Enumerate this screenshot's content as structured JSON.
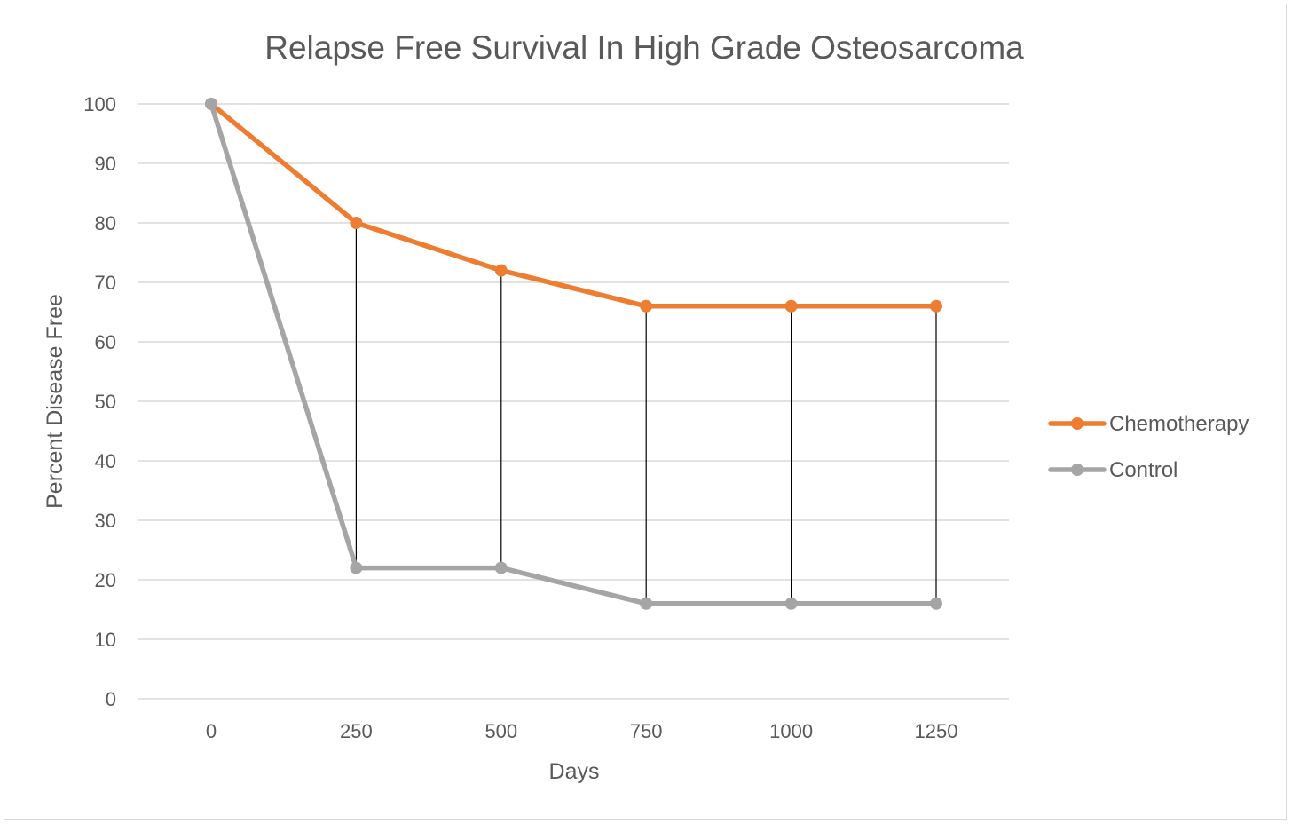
{
  "chart_data": {
    "type": "line",
    "title": "Relapse Free Survival In High Grade Osteosarcoma",
    "xlabel": "Days",
    "ylabel": "Percent Disease Free",
    "categories": [
      "0",
      "250",
      "500",
      "750",
      "1000",
      "1250"
    ],
    "ylim": [
      0,
      100
    ],
    "yticks": [
      "0",
      "10",
      "20",
      "30",
      "40",
      "50",
      "60",
      "70",
      "80",
      "90",
      "100"
    ],
    "grid": "horizontal",
    "legend_position": "right",
    "drop_lines": true,
    "series": [
      {
        "name": "Chemotherapy",
        "color": "#ed7d31",
        "values": [
          100,
          80,
          72,
          66,
          66,
          66
        ]
      },
      {
        "name": "Control",
        "color": "#a5a5a5",
        "values": [
          100,
          22,
          22,
          16,
          16,
          16
        ]
      }
    ],
    "gridline_color": "#d9d9d9",
    "drop_line_color": "#000000"
  }
}
